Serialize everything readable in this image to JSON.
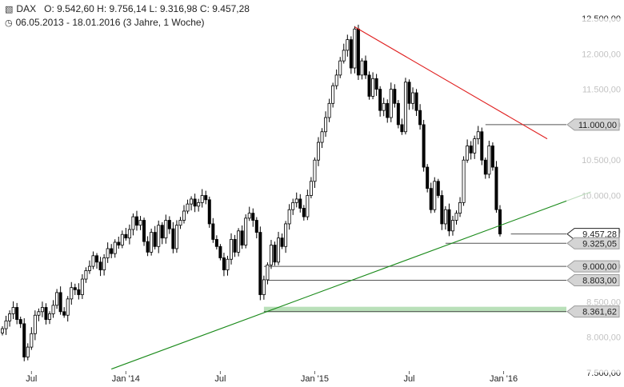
{
  "header": {
    "instrument_icon": "candlestick-icon",
    "symbol": "DAX",
    "ohlc": "O: 9.542,60   H: 9.756,14   L: 9.316,98   C: 9.457,28",
    "range_icon": "clock-icon",
    "range": "06.05.2013 - 18.01.2016 (3 Jahre, 1 Woche)"
  },
  "chart_data": {
    "type": "candlestick",
    "ylim": [
      7500,
      12500
    ],
    "y_ticks": [
      {
        "v": 12500,
        "l": "12.500,00"
      },
      {
        "v": 12000,
        "l": "12.000,00"
      },
      {
        "v": 11500,
        "l": "11.500,00"
      },
      {
        "v": 11000,
        "l": "11.000,00"
      },
      {
        "v": 10500,
        "l": "10.500,00"
      },
      {
        "v": 10000,
        "l": "10.000,00"
      },
      {
        "v": 9500,
        "l": "9.500,00"
      },
      {
        "v": 9000,
        "l": "9.000,00"
      },
      {
        "v": 8500,
        "l": "8.500,00"
      },
      {
        "v": 8000,
        "l": "8.000,00"
      },
      {
        "v": 7500,
        "l": "7.500,00"
      }
    ],
    "x_ticks": [
      {
        "i": 8,
        "l": "Jul"
      },
      {
        "i": 34,
        "l": "Jan '14"
      },
      {
        "i": 60,
        "l": "Jul"
      },
      {
        "i": 86,
        "l": "Jan '15"
      },
      {
        "i": 112,
        "l": "Jul"
      },
      {
        "i": 138,
        "l": "Jan '16"
      }
    ],
    "candles_weekly_close": [
      8120,
      8230,
      8330,
      8420,
      8250,
      8190,
      7720,
      7860,
      8050,
      8310,
      8360,
      8420,
      8250,
      8330,
      8450,
      8630,
      8360,
      8310,
      8540,
      8700,
      8670,
      8600,
      8820,
      8940,
      9000,
      9150,
      9060,
      8950,
      9120,
      9250,
      9180,
      9340,
      9300,
      9450,
      9400,
      9520,
      9700,
      9580,
      9650,
      9350,
      9200,
      9480,
      9280,
      9580,
      9400,
      9650,
      9530,
      9250,
      9580,
      9650,
      9780,
      9880,
      9950,
      9850,
      9900,
      10000,
      9940,
      9600,
      9380,
      9280,
      9120,
      8950,
      9100,
      9380,
      9200,
      9500,
      9300,
      9680,
      9750,
      9650,
      9480,
      8600,
      8810,
      9020,
      9300,
      9060,
      9400,
      9280,
      9600,
      9800,
      9900,
      9950,
      9820,
      9700,
      10000,
      10200,
      10500,
      10750,
      10900,
      11100,
      11300,
      11550,
      11700,
      11900,
      12050,
      12200,
      11800,
      12350,
      11700,
      11900,
      11700,
      11400,
      11650,
      11500,
      11200,
      11300,
      11100,
      11500,
      11300,
      11000,
      10900,
      11600,
      11300,
      11450,
      11200,
      11000,
      10400,
      10100,
      9800,
      10200,
      10000,
      9600,
      9800,
      9500,
      9650,
      9750,
      9900,
      10500,
      10700,
      10600,
      10800,
      10900,
      10500,
      10300,
      10700,
      10400,
      9800,
      9457
    ],
    "series_high": 12390,
    "series_low": 7660,
    "lines": [
      {
        "name": "down-trendline",
        "from": {
          "i": 97,
          "v": 12380
        },
        "to": {
          "i": 150,
          "v": 10800
        },
        "color": "#e02020"
      },
      {
        "name": "up-trendline",
        "from": {
          "i": 30,
          "v": 7550
        },
        "to": {
          "i": 162,
          "v": 10050
        },
        "color": "#1a8a1a"
      }
    ],
    "levels": [
      {
        "v": 11000,
        "label": "11.000,00",
        "from_i": 133
      },
      {
        "v": 9457.28,
        "label": "9.457,28",
        "from_i": 140,
        "highlight": true
      },
      {
        "v": 9325.05,
        "label": "9.325,05",
        "from_i": 122
      },
      {
        "v": 9000,
        "label": "9.000,00",
        "from_i": 72
      },
      {
        "v": 8803,
        "label": "8.803,00",
        "from_i": 73
      },
      {
        "v": 8361.62,
        "label": "8.361,62",
        "from_i": 72,
        "zone": true
      }
    ],
    "colors": {
      "up": "#ffffff",
      "down": "#000000",
      "zone": "#b9e0b9",
      "level_line": "#555555"
    }
  }
}
